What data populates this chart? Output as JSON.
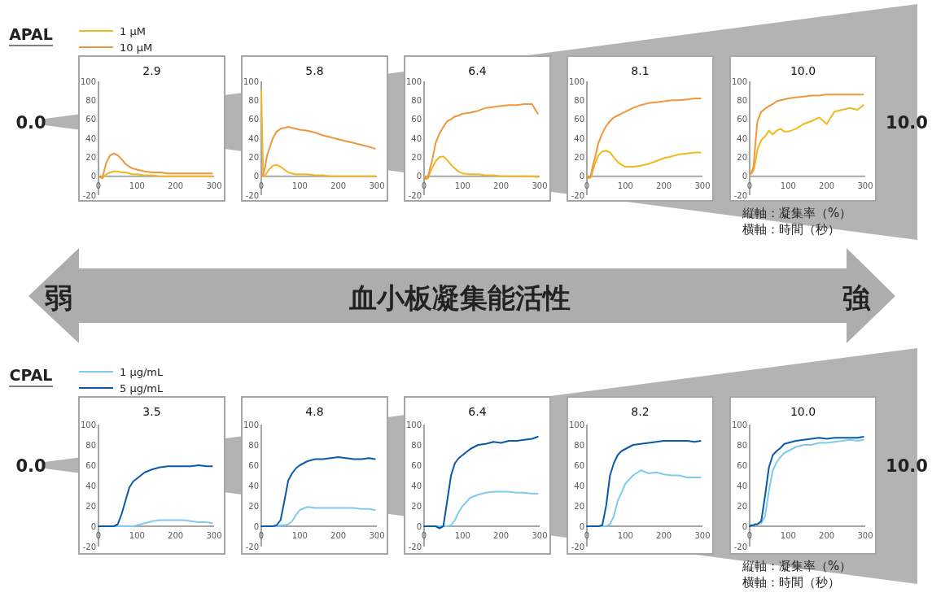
{
  "chart_data": [
    {
      "type": "other",
      "annotations": [
        "弱",
        "血小板凝集能活性",
        "強"
      ]
    },
    {
      "type": "line",
      "title": "2.9",
      "annotations": [
        "APAL",
        "0.0"
      ],
      "legend": "top left",
      "x": [
        0,
        5,
        10,
        15,
        20,
        30,
        40,
        50,
        60,
        70,
        80,
        90,
        100,
        120,
        140,
        160,
        180,
        200,
        220,
        240,
        260,
        280,
        295
      ],
      "xlim": [
        0,
        300
      ],
      "xticks": [
        0,
        100,
        200,
        300
      ],
      "ylim": [
        -20,
        100
      ],
      "yticks": [
        -20,
        0,
        20,
        40,
        60,
        80,
        100
      ],
      "series": [
        {
          "name": "1 μM",
          "color": "#f2b91e",
          "values": [
            0,
            -1,
            -2,
            0,
            2,
            4,
            5,
            5,
            4,
            4,
            3,
            2,
            2,
            1,
            1,
            0,
            0,
            0,
            0,
            0,
            0,
            0,
            0
          ]
        },
        {
          "name": "10 μM",
          "color": "#f0963c",
          "values": [
            0,
            -1,
            -2,
            6,
            14,
            22,
            24,
            22,
            18,
            13,
            10,
            8,
            7,
            5,
            4,
            4,
            3,
            3,
            3,
            3,
            3,
            3,
            3
          ]
        }
      ]
    },
    {
      "type": "line",
      "title": "5.8",
      "x": [
        0,
        5,
        10,
        15,
        20,
        30,
        40,
        50,
        60,
        70,
        80,
        90,
        100,
        120,
        140,
        160,
        180,
        200,
        220,
        240,
        260,
        280,
        295
      ],
      "xlim": [
        0,
        300
      ],
      "xticks": [
        0,
        100,
        200,
        300
      ],
      "ylim": [
        -20,
        100
      ],
      "yticks": [
        -20,
        0,
        20,
        40,
        60,
        80,
        100
      ],
      "series": [
        {
          "color": "#f2b91e",
          "values": [
            90,
            0,
            1,
            4,
            7,
            11,
            12,
            10,
            7,
            4,
            3,
            2,
            2,
            2,
            1,
            1,
            0,
            0,
            0,
            0,
            0,
            0,
            0
          ]
        },
        {
          "color": "#f0963c",
          "values": [
            0,
            2,
            10,
            22,
            28,
            40,
            47,
            50,
            51,
            52,
            51,
            50,
            49,
            48,
            46,
            43,
            41,
            39,
            37,
            35,
            33,
            31,
            29
          ]
        }
      ]
    },
    {
      "type": "line",
      "title": "6.4",
      "x": [
        0,
        5,
        10,
        15,
        20,
        30,
        40,
        50,
        60,
        70,
        80,
        90,
        100,
        120,
        140,
        160,
        180,
        200,
        220,
        240,
        260,
        280,
        295
      ],
      "xlim": [
        0,
        300
      ],
      "xticks": [
        0,
        100,
        200,
        300
      ],
      "ylim": [
        -20,
        100
      ],
      "yticks": [
        -20,
        0,
        20,
        40,
        60,
        80,
        100
      ],
      "series": [
        {
          "color": "#f2b91e",
          "values": [
            0,
            -3,
            -2,
            3,
            8,
            16,
            20,
            21,
            17,
            12,
            8,
            5,
            3,
            2,
            2,
            1,
            1,
            0,
            0,
            0,
            0,
            0,
            -1
          ]
        },
        {
          "color": "#f0963c",
          "values": [
            0,
            -3,
            -1,
            8,
            15,
            35,
            45,
            52,
            58,
            60,
            63,
            64,
            66,
            67,
            69,
            72,
            73,
            74,
            75,
            75,
            76,
            76,
            66
          ]
        }
      ]
    },
    {
      "type": "line",
      "title": "8.1",
      "x": [
        0,
        5,
        10,
        15,
        20,
        30,
        40,
        50,
        60,
        70,
        80,
        90,
        100,
        120,
        140,
        160,
        180,
        200,
        220,
        240,
        260,
        280,
        295
      ],
      "xlim": [
        0,
        300
      ],
      "xticks": [
        0,
        100,
        200,
        300
      ],
      "ylim": [
        -20,
        100
      ],
      "yticks": [
        -20,
        0,
        20,
        40,
        60,
        80,
        100
      ],
      "series": [
        {
          "color": "#f2b91e",
          "values": [
            0,
            -2,
            -1,
            5,
            12,
            22,
            26,
            27,
            25,
            20,
            15,
            12,
            10,
            10,
            11,
            13,
            16,
            19,
            21,
            23,
            24,
            25,
            25
          ]
        },
        {
          "color": "#f0963c",
          "values": [
            0,
            -2,
            0,
            10,
            18,
            35,
            45,
            53,
            58,
            62,
            64,
            66,
            68,
            72,
            75,
            77,
            78,
            79,
            80,
            80,
            81,
            82,
            82
          ]
        }
      ]
    },
    {
      "type": "line",
      "title": "10.0",
      "annotations": [
        "10.0",
        "縦軸：凝集率（%）",
        "横軸：時間（秒）"
      ],
      "x": [
        0,
        5,
        10,
        15,
        20,
        30,
        40,
        50,
        60,
        70,
        80,
        90,
        100,
        120,
        140,
        160,
        180,
        200,
        220,
        240,
        260,
        280,
        295
      ],
      "xlim": [
        0,
        300
      ],
      "xticks": [
        0,
        100,
        200,
        300
      ],
      "ylim": [
        -20,
        100
      ],
      "yticks": [
        -20,
        0,
        20,
        40,
        60,
        80,
        100
      ],
      "series": [
        {
          "color": "#f2b91e",
          "values": [
            2,
            3,
            6,
            15,
            28,
            38,
            42,
            48,
            44,
            48,
            50,
            47,
            47,
            50,
            55,
            58,
            62,
            55,
            68,
            70,
            72,
            70,
            75
          ]
        },
        {
          "color": "#f0963c",
          "values": [
            2,
            4,
            10,
            35,
            58,
            68,
            71,
            74,
            76,
            79,
            80,
            81,
            82,
            83,
            84,
            85,
            85,
            86,
            86,
            86,
            86,
            86,
            86
          ]
        }
      ]
    },
    {
      "type": "line",
      "title": "3.5",
      "annotations": [
        "CPAL",
        "0.0"
      ],
      "legend": "top left",
      "x": [
        0,
        5,
        10,
        15,
        20,
        30,
        40,
        50,
        60,
        70,
        80,
        90,
        100,
        120,
        140,
        160,
        180,
        200,
        220,
        240,
        260,
        280,
        295
      ],
      "xlim": [
        0,
        300
      ],
      "xticks": [
        0,
        100,
        200,
        300
      ],
      "ylim": [
        -20,
        100
      ],
      "yticks": [
        -20,
        0,
        20,
        40,
        60,
        80,
        100
      ],
      "series": [
        {
          "name": "1 μg/mL",
          "color": "#7fcbf0",
          "values": [
            null,
            null,
            null,
            null,
            0,
            0,
            0,
            0,
            0,
            0,
            0,
            0,
            1,
            3,
            5,
            6,
            6,
            6,
            6,
            5,
            4,
            4,
            3
          ]
        },
        {
          "name": "5 μg/mL",
          "color": "#0a5aa8",
          "values": [
            0,
            0,
            0,
            0,
            0,
            0,
            0,
            2,
            12,
            25,
            38,
            44,
            47,
            53,
            56,
            58,
            59,
            59,
            59,
            59,
            60,
            59,
            59
          ]
        }
      ]
    },
    {
      "type": "line",
      "title": "4.8",
      "x": [
        0,
        5,
        10,
        15,
        20,
        30,
        40,
        50,
        60,
        70,
        80,
        90,
        100,
        120,
        140,
        160,
        180,
        200,
        220,
        240,
        260,
        280,
        295
      ],
      "xlim": [
        0,
        300
      ],
      "xticks": [
        0,
        100,
        200,
        300
      ],
      "ylim": [
        -20,
        100
      ],
      "yticks": [
        -20,
        0,
        20,
        40,
        60,
        80,
        100
      ],
      "series": [
        {
          "color": "#7fcbf0",
          "values": [
            null,
            null,
            null,
            null,
            0,
            0,
            0,
            1,
            1,
            2,
            5,
            11,
            16,
            19,
            18,
            18,
            18,
            18,
            18,
            18,
            17,
            17,
            16
          ]
        },
        {
          "color": "#0a5aa8",
          "values": [
            0,
            0,
            0,
            0,
            0,
            0,
            1,
            6,
            25,
            45,
            52,
            57,
            60,
            64,
            66,
            66,
            67,
            68,
            67,
            66,
            66,
            67,
            66
          ]
        }
      ]
    },
    {
      "type": "line",
      "title": "6.4",
      "x": [
        0,
        5,
        10,
        15,
        20,
        30,
        40,
        50,
        60,
        70,
        80,
        90,
        100,
        120,
        140,
        160,
        180,
        200,
        220,
        240,
        260,
        280,
        295
      ],
      "xlim": [
        0,
        300
      ],
      "xticks": [
        0,
        100,
        200,
        300
      ],
      "ylim": [
        -20,
        100
      ],
      "yticks": [
        -20,
        0,
        20,
        40,
        60,
        80,
        100
      ],
      "series": [
        {
          "color": "#7fcbf0",
          "values": [
            null,
            null,
            null,
            null,
            0,
            0,
            0,
            0,
            0,
            1,
            6,
            14,
            20,
            28,
            31,
            33,
            34,
            34,
            34,
            33,
            33,
            32,
            32
          ]
        },
        {
          "color": "#0a5aa8",
          "values": [
            0,
            0,
            0,
            0,
            0,
            0,
            -2,
            0,
            25,
            50,
            62,
            67,
            70,
            76,
            80,
            81,
            83,
            82,
            84,
            84,
            85,
            86,
            88
          ]
        }
      ]
    },
    {
      "type": "line",
      "title": "8.2",
      "x": [
        0,
        5,
        10,
        15,
        20,
        30,
        40,
        50,
        60,
        70,
        80,
        90,
        100,
        120,
        140,
        160,
        180,
        200,
        220,
        240,
        260,
        280,
        295
      ],
      "xlim": [
        0,
        300
      ],
      "xticks": [
        0,
        100,
        200,
        300
      ],
      "ylim": [
        -20,
        100
      ],
      "yticks": [
        -20,
        0,
        20,
        40,
        60,
        80,
        100
      ],
      "series": [
        {
          "color": "#7fcbf0",
          "values": [
            null,
            null,
            null,
            null,
            0,
            0,
            0,
            0,
            2,
            10,
            25,
            33,
            42,
            50,
            55,
            52,
            53,
            51,
            50,
            50,
            48,
            48,
            48
          ]
        },
        {
          "color": "#0a5aa8",
          "values": [
            0,
            0,
            0,
            0,
            0,
            0,
            1,
            20,
            50,
            62,
            70,
            74,
            76,
            80,
            81,
            82,
            83,
            84,
            84,
            84,
            84,
            83,
            84
          ]
        }
      ]
    },
    {
      "type": "line",
      "title": "10.0",
      "annotations": [
        "10.0",
        "縦軸：凝集率（%）",
        "横軸：時間（秒）"
      ],
      "x": [
        0,
        5,
        10,
        15,
        20,
        30,
        40,
        50,
        60,
        70,
        80,
        90,
        100,
        120,
        140,
        160,
        180,
        200,
        220,
        240,
        260,
        280,
        295
      ],
      "xlim": [
        0,
        300
      ],
      "xticks": [
        0,
        100,
        200,
        300
      ],
      "ylim": [
        -20,
        100
      ],
      "yticks": [
        -20,
        0,
        20,
        40,
        60,
        80,
        100
      ],
      "series": [
        {
          "color": "#7fcbf0",
          "values": [
            null,
            null,
            null,
            null,
            2,
            3,
            10,
            35,
            55,
            63,
            68,
            72,
            74,
            78,
            80,
            80,
            82,
            82,
            83,
            84,
            85,
            84,
            85
          ]
        },
        {
          "color": "#0a5aa8",
          "values": [
            0,
            1,
            1,
            2,
            2,
            5,
            30,
            58,
            70,
            74,
            77,
            81,
            82,
            84,
            85,
            86,
            87,
            86,
            87,
            87,
            87,
            87,
            88
          ]
        }
      ]
    }
  ]
}
